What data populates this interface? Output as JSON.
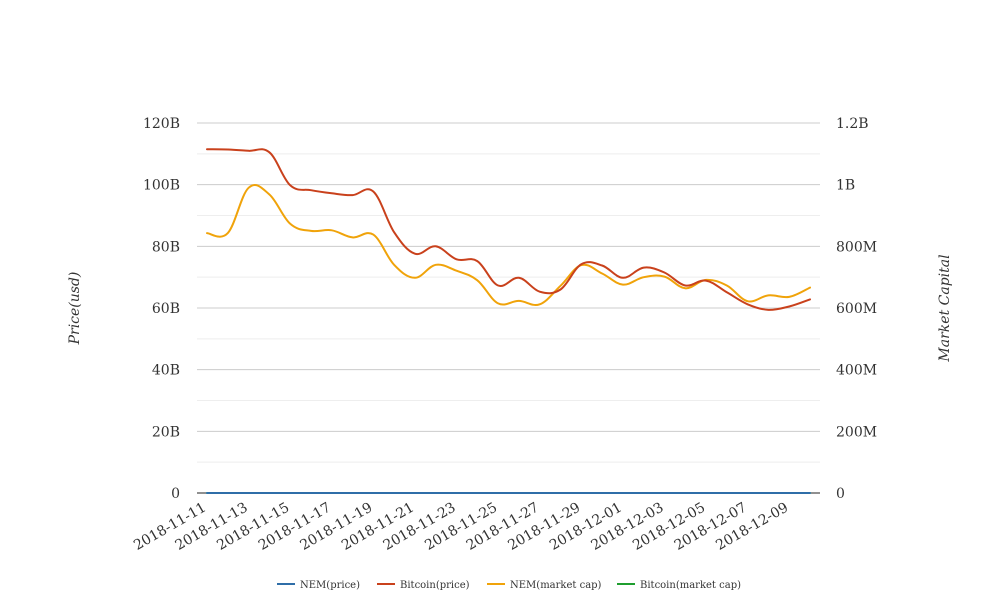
{
  "chart_data": {
    "type": "line",
    "x": [
      "2018-11-11",
      "2018-11-12",
      "2018-11-13",
      "2018-11-14",
      "2018-11-15",
      "2018-11-16",
      "2018-11-17",
      "2018-11-18",
      "2018-11-19",
      "2018-11-20",
      "2018-11-21",
      "2018-11-22",
      "2018-11-23",
      "2018-11-24",
      "2018-11-25",
      "2018-11-26",
      "2018-11-27",
      "2018-11-28",
      "2018-11-29",
      "2018-11-30",
      "2018-12-01",
      "2018-12-02",
      "2018-12-03",
      "2018-12-04",
      "2018-12-05",
      "2018-12-06",
      "2018-12-07",
      "2018-12-08",
      "2018-12-09",
      "2018-12-10"
    ],
    "xticks": [
      "2018-11-11",
      "2018-11-13",
      "2018-11-15",
      "2018-11-17",
      "2018-11-19",
      "2018-11-21",
      "2018-11-23",
      "2018-11-25",
      "2018-11-27",
      "2018-11-29",
      "2018-12-01",
      "2018-12-03",
      "2018-12-05",
      "2018-12-07",
      "2018-12-09"
    ],
    "y_left": {
      "label": "Price(usd)",
      "ticks": [
        "0",
        "20B",
        "40B",
        "60B",
        "80B",
        "100B",
        "120B"
      ],
      "ylim": [
        0,
        120000000000
      ]
    },
    "y_right": {
      "label": "Market Capital",
      "ticks": [
        "0",
        "200M",
        "400M",
        "600M",
        "800M",
        "1B",
        "1.2B"
      ],
      "ylim": [
        0,
        1200000000
      ]
    },
    "grid": true,
    "legend_position": "bottom",
    "series": [
      {
        "name": "NEM(price)",
        "color": "#2f6ea8",
        "axis": "left",
        "values": [
          0.12,
          0.12,
          0.12,
          0.12,
          0.11,
          0.11,
          0.11,
          0.11,
          0.11,
          0.09,
          0.09,
          0.09,
          0.09,
          0.09,
          0.08,
          0.08,
          0.08,
          0.08,
          0.09,
          0.09,
          0.09,
          0.09,
          0.09,
          0.08,
          0.08,
          0.08,
          0.08,
          0.08,
          0.08,
          0.08
        ]
      },
      {
        "name": "Bitcoin(price)",
        "color": "#c9411c",
        "axis": "right",
        "values": [
          1115000000,
          1114000000,
          1110000000,
          1105000000,
          998000000,
          982000000,
          972000000,
          966000000,
          978000000,
          846000000,
          776000000,
          800000000,
          758000000,
          752000000,
          673000000,
          698000000,
          653000000,
          660000000,
          742000000,
          738000000,
          698000000,
          731000000,
          715000000,
          673000000,
          689000000,
          651000000,
          612000000,
          594000000,
          605000000,
          628000000
        ]
      },
      {
        "name": "NEM(market cap)",
        "color": "#f0a30a",
        "axis": "right",
        "values": [
          843000000,
          843000000,
          990000000,
          968000000,
          873000000,
          850000000,
          852000000,
          829000000,
          838000000,
          740000000,
          698000000,
          740000000,
          721000000,
          690000000,
          615000000,
          623000000,
          612000000,
          672000000,
          739000000,
          712000000,
          676000000,
          700000000,
          702000000,
          664000000,
          691000000,
          673000000,
          622000000,
          641000000,
          636000000,
          666000000
        ]
      },
      {
        "name": "Bitcoin(market cap)",
        "color": "#1f9e2f",
        "axis": "left",
        "values": [
          200000,
          200000,
          200000,
          200000,
          200000,
          200000,
          200000,
          200000,
          200000,
          200000,
          200000,
          200000,
          200000,
          200000,
          200000,
          200000,
          200000,
          200000,
          200000,
          200000,
          200000,
          200000,
          200000,
          200000,
          200000,
          200000,
          200000,
          200000,
          200000,
          200000
        ]
      }
    ]
  }
}
